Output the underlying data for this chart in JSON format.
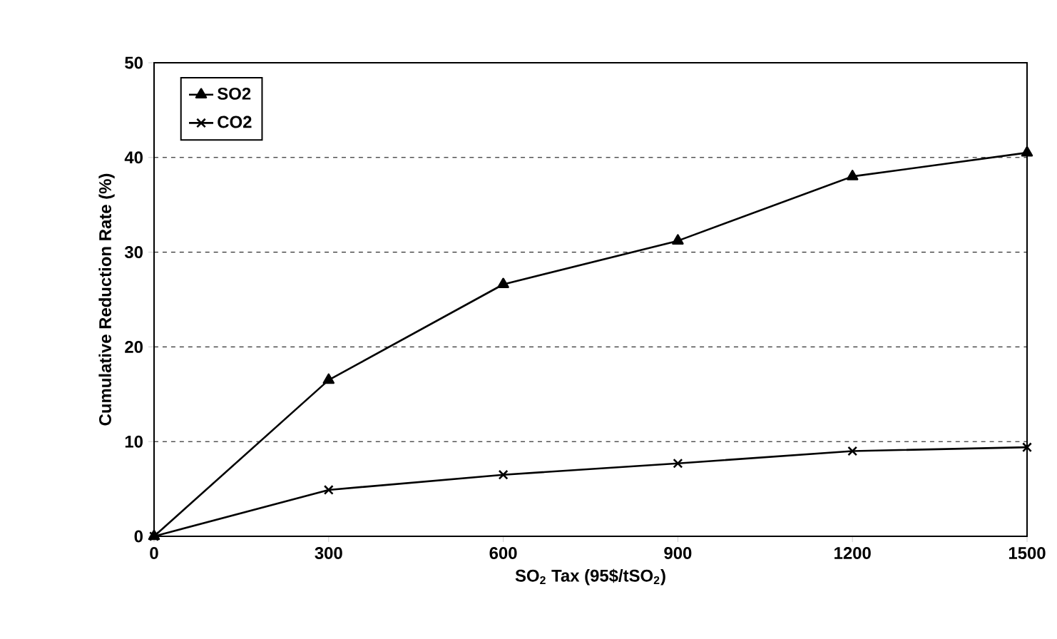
{
  "chart_data": {
    "type": "line",
    "xlabel": "SO$_{2}$ Tax (95$/tSO$_{2}$)",
    "ylabel": "Cumulative Reduction Rate (%)",
    "x": [
      0,
      300,
      600,
      900,
      1200,
      1500
    ],
    "series": [
      {
        "name": "SO2",
        "color": "#000000",
        "marker": "triangle",
        "values": [
          0,
          16.5,
          26.6,
          31.2,
          38.0,
          40.5
        ]
      },
      {
        "name": "CO2",
        "color": "#000000",
        "marker": "cross",
        "values": [
          0,
          4.9,
          6.5,
          7.7,
          9.0,
          9.4
        ]
      }
    ],
    "xlim": [
      0,
      1500
    ],
    "xticks": [
      0,
      300,
      600,
      900,
      1200,
      1500
    ],
    "ylim": [
      0,
      50
    ],
    "yticks": [
      0,
      10,
      20,
      30,
      40,
      50
    ],
    "grid": "y",
    "legend": "top left",
    "line_style": "solid"
  }
}
